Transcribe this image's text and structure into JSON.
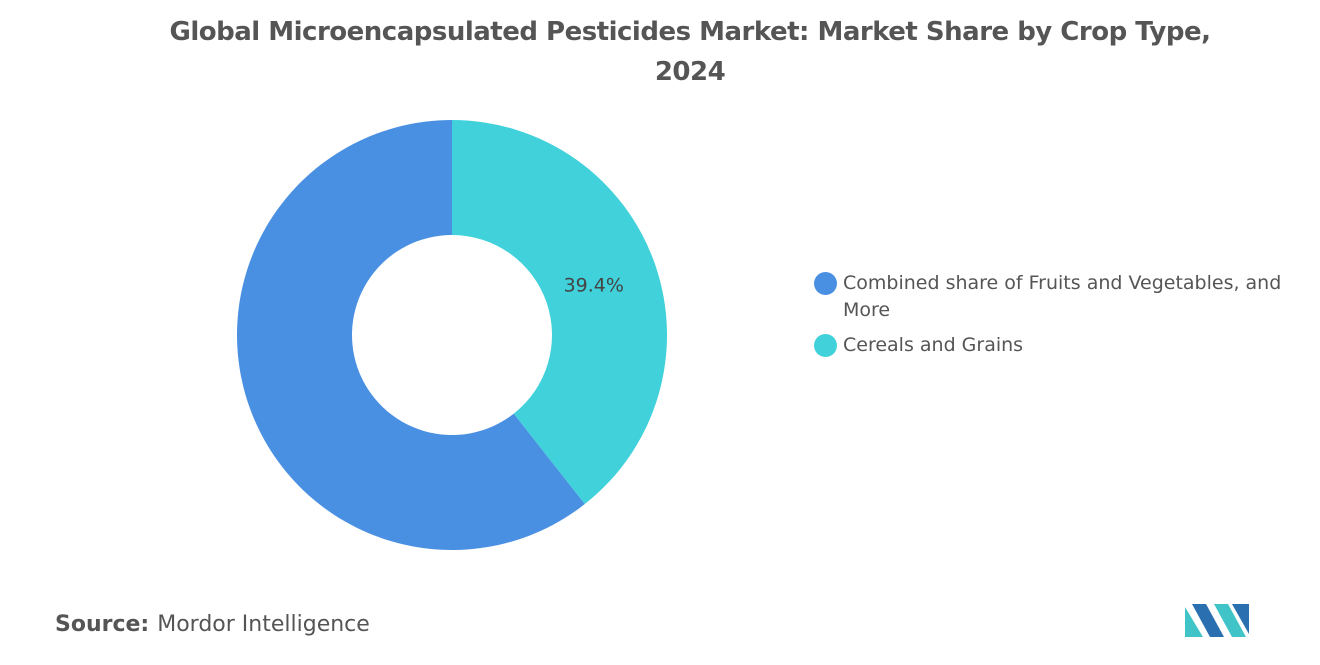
{
  "chart_data": {
    "type": "donut",
    "title": "Global Microencapsulated Pesticides Market: Market Share by Crop Type, 2024",
    "series": [
      {
        "name": "Combined share of Fruits and Vegetables, and More",
        "color": "#4a90e2"
      },
      {
        "name": "Cereals and Grains",
        "color": "#40d1db"
      }
    ],
    "values": [
      60.6,
      39.4
    ],
    "value_labels": [
      null,
      "39.4%"
    ],
    "source_label": "Source:",
    "source": "Mordor Intelligence"
  }
}
